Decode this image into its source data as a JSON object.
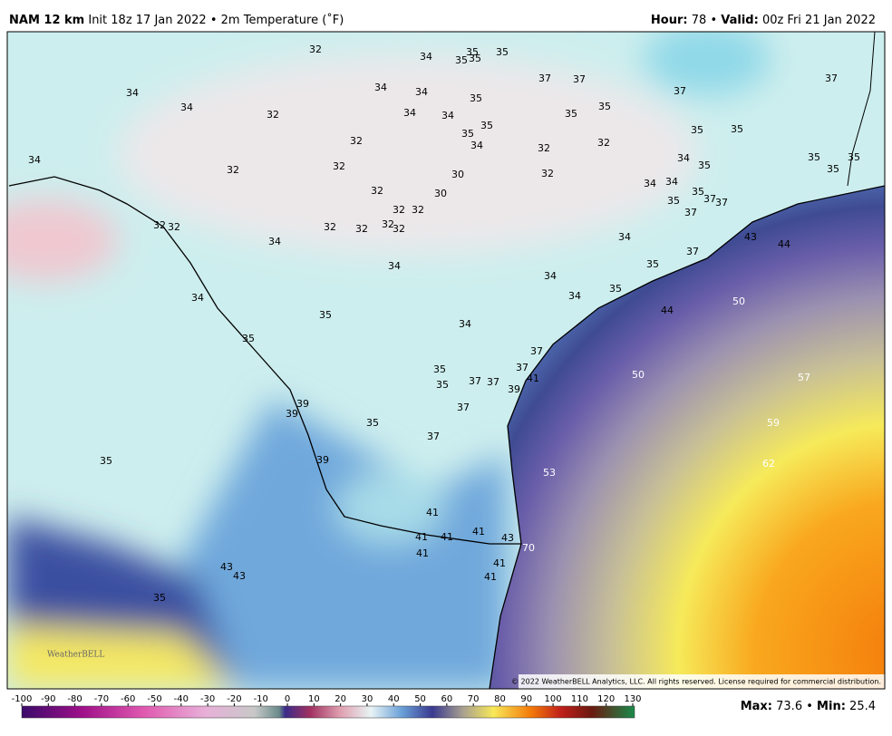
{
  "header": {
    "model": "NAM 12 km",
    "init": "Init 18z 17 Jan 2022",
    "separator": "•",
    "field": "2m Temperature (˚F)",
    "hour_label": "Hour:",
    "hour": 78,
    "valid_label": "Valid:",
    "valid": "00z Fri 21 Jan 2022"
  },
  "map": {
    "station_values": [
      32,
      34,
      35,
      35,
      35,
      35,
      37,
      37,
      37,
      37,
      34,
      34,
      32,
      34,
      34,
      34,
      34,
      35,
      35,
      35,
      34,
      35,
      35,
      35,
      35,
      34,
      32,
      32,
      32,
      32,
      32,
      34,
      35,
      35,
      35,
      35,
      30,
      32,
      34,
      34,
      35,
      37,
      37,
      35,
      37,
      32,
      30,
      32,
      32,
      32,
      32,
      32,
      32,
      32,
      32,
      34,
      34,
      37,
      43,
      44,
      34,
      34,
      35,
      34,
      35,
      34,
      35,
      34,
      44,
      50,
      35,
      37,
      35,
      35,
      37,
      37,
      37,
      41,
      39,
      50,
      57,
      39,
      39,
      37,
      35,
      37,
      59,
      35,
      39,
      53,
      62,
      41,
      41,
      41,
      41,
      43,
      41,
      70,
      41,
      41,
      43,
      43,
      35
    ]
  },
  "logo": "WeatherBELL",
  "copyright": "© 2022 WeatherBELL Analytics, LLC. All rights reserved. License required for commercial distribution.",
  "colorbar": {
    "ticks": [
      -100,
      -90,
      -80,
      -70,
      -60,
      -50,
      -40,
      -30,
      -20,
      -10,
      0,
      10,
      20,
      30,
      40,
      50,
      60,
      70,
      80,
      90,
      100,
      110,
      120,
      130
    ]
  },
  "stats": {
    "max_label": "Max:",
    "max": 73.6,
    "min_label": "Min:",
    "min": 25.4
  }
}
